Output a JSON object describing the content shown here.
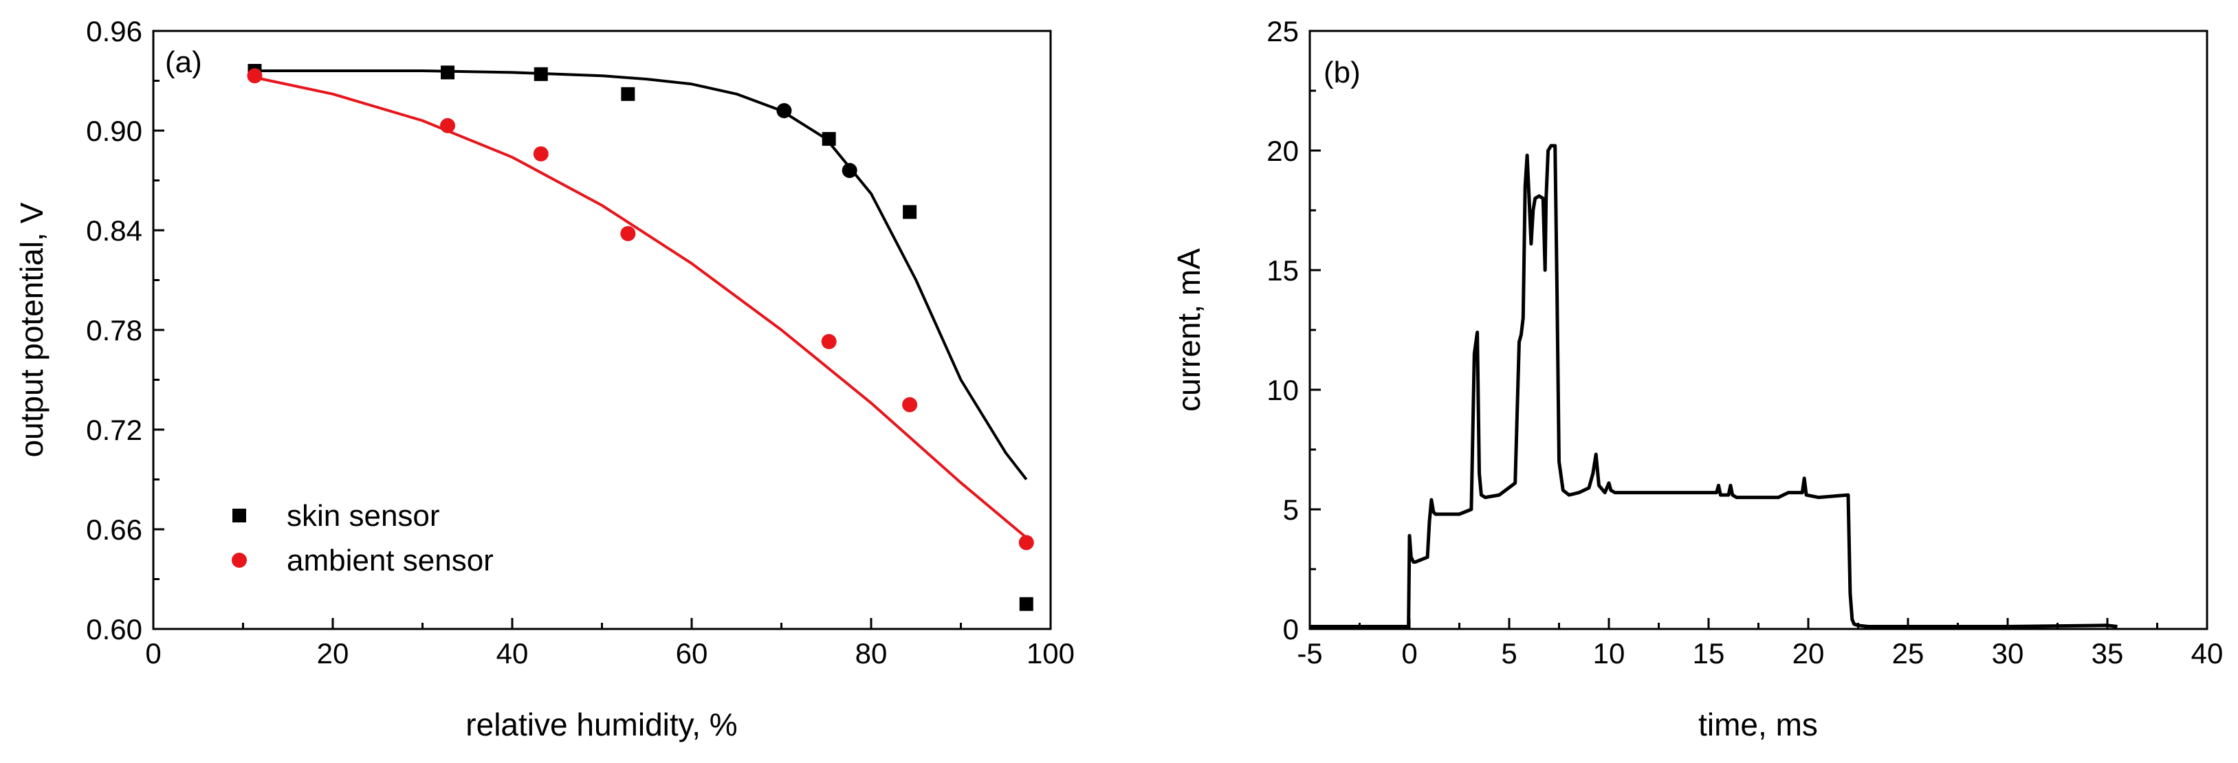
{
  "chart_data": [
    {
      "panel": "(a)",
      "type": "scatter",
      "xlabel": "relative humidity, %",
      "ylabel": "output potential, V",
      "xlim": [
        0,
        100
      ],
      "ylim": [
        0.6,
        0.96
      ],
      "xticks": [
        0,
        20,
        40,
        60,
        80,
        100
      ],
      "yticks": [
        0.6,
        0.66,
        0.72,
        0.78,
        0.84,
        0.9,
        0.96
      ],
      "xtick_labels": [
        "0",
        "20",
        "40",
        "60",
        "80",
        "100"
      ],
      "ytick_labels": [
        "0.60",
        "0.66",
        "0.72",
        "0.78",
        "0.84",
        "0.90",
        "0.96"
      ],
      "legend_position": "bottom-left",
      "series": [
        {
          "name": "skin sensor",
          "marker": "square",
          "color": "#000000",
          "x": [
            11.3,
            32.8,
            43.2,
            52.9,
            75.3,
            84.3,
            97.3
          ],
          "y": [
            0.936,
            0.935,
            0.934,
            0.922,
            0.895,
            0.851,
            0.615
          ]
        },
        {
          "name": "ambient sensor",
          "marker": "circle",
          "color": "#e8151b",
          "x": [
            11.3,
            32.8,
            43.2,
            52.9,
            75.3,
            84.3,
            97.3
          ],
          "y": [
            0.933,
            0.903,
            0.886,
            0.838,
            0.773,
            0.735,
            0.652
          ]
        }
      ],
      "extra_points": [
        {
          "marker": "circle",
          "color": "#000000",
          "x": [
            70.3,
            77.6
          ],
          "y": [
            0.912,
            0.876
          ]
        }
      ],
      "fit_lines": [
        {
          "name": "skin sensor fit",
          "color": "#000000",
          "x": [
            11.3,
            20,
            30,
            40,
            50,
            55,
            60,
            65,
            70,
            75,
            80,
            85,
            90,
            95,
            97.3
          ],
          "y": [
            0.936,
            0.936,
            0.936,
            0.935,
            0.933,
            0.931,
            0.928,
            0.922,
            0.912,
            0.895,
            0.862,
            0.81,
            0.75,
            0.706,
            0.69
          ]
        },
        {
          "name": "ambient sensor fit",
          "color": "#e8151b",
          "x": [
            11.3,
            20,
            30,
            40,
            50,
            60,
            70,
            80,
            90,
            97.3
          ],
          "y": [
            0.932,
            0.922,
            0.906,
            0.884,
            0.855,
            0.82,
            0.78,
            0.736,
            0.688,
            0.655
          ]
        }
      ]
    },
    {
      "panel": "(b)",
      "type": "line",
      "xlabel": "time, ms",
      "ylabel": "current, mA",
      "xlim": [
        -5,
        40
      ],
      "ylim": [
        0,
        25
      ],
      "xticks": [
        -5,
        0,
        5,
        10,
        15,
        20,
        25,
        30,
        35,
        40
      ],
      "yticks": [
        0,
        5,
        10,
        15,
        20,
        25
      ],
      "xtick_labels": [
        "-5",
        "0",
        "5",
        "10",
        "15",
        "20",
        "25",
        "30",
        "35",
        "40"
      ],
      "ytick_labels": [
        "0",
        "5",
        "10",
        "15",
        "20",
        "25"
      ],
      "series": [
        {
          "name": "current",
          "color": "#000000",
          "x": [
            -5,
            -2,
            -0.05,
            0,
            0.08,
            0.2,
            0.3,
            0.9,
            1.0,
            1.1,
            1.2,
            1.3,
            1.5,
            2.5,
            3.1,
            3.25,
            3.4,
            3.5,
            3.6,
            3.8,
            4.5,
            5.3,
            5.5,
            5.6,
            5.7,
            5.8,
            5.9,
            6.0,
            6.1,
            6.2,
            6.3,
            6.5,
            6.7,
            6.8,
            6.85,
            6.95,
            7.1,
            7.3,
            7.4,
            7.5,
            7.7,
            8.0,
            8.5,
            9.0,
            9.2,
            9.35,
            9.5,
            9.8,
            10.0,
            10.1,
            10.3,
            12,
            15.4,
            15.5,
            15.6,
            16.0,
            16.1,
            16.2,
            16.4,
            18.5,
            19.0,
            19.5,
            19.7,
            19.8,
            19.9,
            20.5,
            22.0,
            22.1,
            22.2,
            22.3,
            22.5,
            23,
            25,
            30,
            35,
            35.5
          ],
          "y": [
            0.1,
            0.1,
            0.1,
            3.9,
            3.0,
            2.8,
            2.8,
            3.0,
            4.5,
            5.4,
            4.9,
            4.8,
            4.8,
            4.8,
            5.0,
            11.5,
            12.4,
            6.5,
            5.6,
            5.5,
            5.6,
            6.1,
            12.0,
            12.3,
            13.0,
            18.5,
            19.8,
            18.0,
            16.1,
            17.5,
            18.0,
            18.1,
            18.0,
            15.0,
            18.0,
            20.0,
            20.2,
            20.2,
            14.0,
            7.0,
            5.8,
            5.6,
            5.7,
            5.9,
            6.5,
            7.3,
            6.0,
            5.7,
            6.1,
            5.8,
            5.7,
            5.7,
            5.7,
            6.0,
            5.6,
            5.6,
            6.0,
            5.6,
            5.5,
            5.5,
            5.7,
            5.7,
            5.7,
            6.3,
            5.6,
            5.5,
            5.6,
            1.5,
            0.4,
            0.2,
            0.15,
            0.1,
            0.1,
            0.1,
            0.15,
            0.1
          ]
        }
      ]
    }
  ]
}
